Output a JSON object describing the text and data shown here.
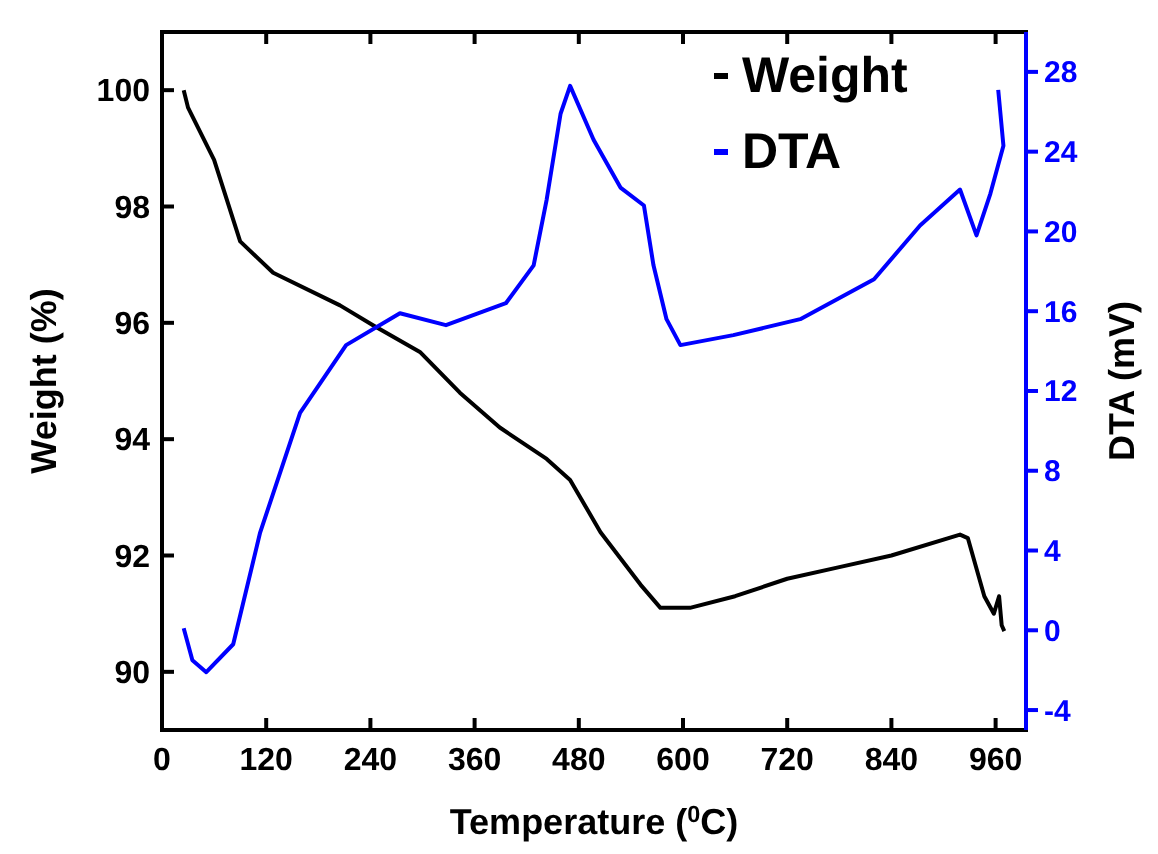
{
  "chart_data": {
    "type": "line",
    "xlabel": "Temperature ($^{0}$C)",
    "ylabel": "Weight (%)",
    "y2label": "DTA (mV)",
    "xlim": [
      0,
      995
    ],
    "xticks": [
      0,
      120,
      240,
      360,
      480,
      600,
      720,
      840,
      960
    ],
    "ylim": [
      89,
      101
    ],
    "yticks": [
      90,
      92,
      94,
      96,
      98,
      100
    ],
    "y2lim": [
      -5,
      30
    ],
    "y2ticks": [
      -4,
      0,
      4,
      8,
      12,
      16,
      20,
      24,
      28
    ],
    "legend": "top right",
    "grid": false,
    "series": [
      {
        "name": "Weight",
        "color": "#000000",
        "x": [
          25,
          30,
          60,
          90,
          128,
          205,
          243,
          297,
          343,
          389,
          443,
          470,
          505,
          551,
          574,
          608,
          660,
          720,
          780,
          840,
          919,
          928,
          947,
          958,
          964,
          967,
          970
        ],
        "values": [
          100,
          99.7,
          98.8,
          97.4,
          96.86,
          96.3,
          95.96,
          95.5,
          94.8,
          94.2,
          93.66,
          93.3,
          92.4,
          91.5,
          91.1,
          91.1,
          91.3,
          91.6,
          91.8,
          92.0,
          92.36,
          92.3,
          91.3,
          91.0,
          91.3,
          90.8,
          90.7
        ]
      },
      {
        "name": "DTA",
        "color": "#0000ff",
        "axis": "y2",
        "x": [
          25,
          35,
          51,
          82,
          113,
          159,
          212,
          274,
          327,
          396,
          428,
          443,
          459,
          470,
          497,
          528,
          555,
          566,
          581,
          597,
          658,
          735,
          820,
          873,
          919,
          938,
          954,
          969,
          963
        ],
        "values": [
          0.1,
          -1.5,
          -2.1,
          -0.7,
          4.9,
          10.9,
          14.3,
          15.9,
          15.3,
          16.4,
          18.3,
          21.6,
          25.9,
          27.3,
          24.6,
          22.2,
          21.3,
          18.3,
          15.6,
          14.3,
          14.8,
          15.6,
          17.6,
          20.3,
          22.1,
          19.8,
          21.9,
          24.3,
          27.1
        ]
      }
    ]
  }
}
